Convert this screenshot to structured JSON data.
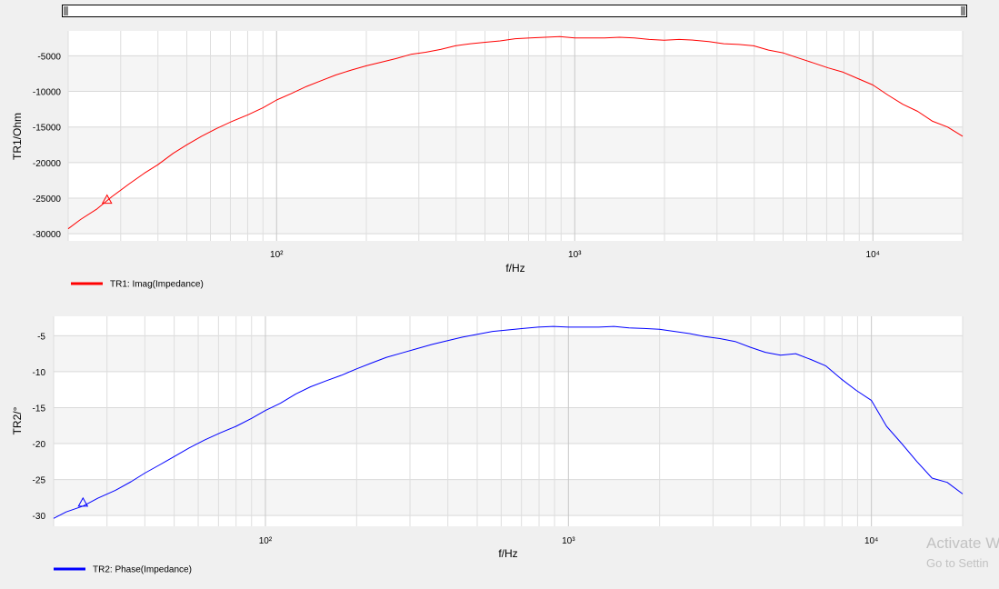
{
  "watermark": {
    "line1": "Activate W",
    "line2": "Go to Settin"
  },
  "charts": [
    {
      "type": "line",
      "xlabel": "f/Hz",
      "ylabel": "TR1/Ohm",
      "xscale": "log",
      "xlim": [
        20,
        20000
      ],
      "ylim": [
        -31000,
        -1500
      ],
      "yticks": [
        -5000,
        -10000,
        -15000,
        -20000,
        -25000,
        -30000
      ],
      "ytick_labels": [
        "-5000",
        "-10000",
        "-15000",
        "-20000",
        "-25000",
        "-30000"
      ],
      "xticks": [
        100,
        1000,
        10000
      ],
      "xtick_labels": [
        "10²",
        "10³",
        "10⁴"
      ],
      "grid": true,
      "legend_position": "bottom-left",
      "series": [
        {
          "name": "TR1: Imag(Impedance)",
          "color": "#ff0000",
          "x": [
            20,
            22,
            25,
            28,
            32,
            36,
            40,
            45,
            50,
            56,
            63,
            71,
            80,
            90,
            100,
            112,
            126,
            141,
            158,
            178,
            200,
            224,
            251,
            282,
            316,
            355,
            398,
            447,
            501,
            562,
            631,
            708,
            794,
            891,
            1000,
            1122,
            1259,
            1413,
            1585,
            1778,
            1995,
            2239,
            2512,
            2818,
            3162,
            3548,
            3981,
            4467,
            5012,
            5623,
            6310,
            7079,
            7943,
            8913,
            10000,
            11220,
            12589,
            14125,
            15849,
            17783,
            20000
          ],
          "y": [
            -29300,
            -28000,
            -26500,
            -24800,
            -23000,
            -21500,
            -20300,
            -18700,
            -17500,
            -16300,
            -15200,
            -14200,
            -13300,
            -12300,
            -11200,
            -10300,
            -9300,
            -8500,
            -7700,
            -7000,
            -6400,
            -5900,
            -5400,
            -4800,
            -4500,
            -4100,
            -3600,
            -3300,
            -3100,
            -2900,
            -2600,
            -2500,
            -2400,
            -2300,
            -2500,
            -2500,
            -2500,
            -2400,
            -2500,
            -2700,
            -2800,
            -2700,
            -2800,
            -3000,
            -3300,
            -3400,
            -3600,
            -4200,
            -4600,
            -5300,
            -6000,
            -6700,
            -7300,
            -8200,
            -9100,
            -10500,
            -11800,
            -12800,
            -14200,
            -15000,
            -16300
          ]
        }
      ],
      "marker": {
        "x": 27,
        "y": -25200,
        "shape": "triangle"
      }
    },
    {
      "type": "line",
      "xlabel": "f/Hz",
      "ylabel": "TR2/°",
      "xscale": "log",
      "xlim": [
        20,
        20000
      ],
      "ylim": [
        -31.5,
        -2.3
      ],
      "yticks": [
        -5,
        -10,
        -15,
        -20,
        -25,
        -30
      ],
      "ytick_labels": [
        "-5",
        "-10",
        "-15",
        "-20",
        "-25",
        "-30"
      ],
      "xticks": [
        100,
        1000,
        10000
      ],
      "xtick_labels": [
        "10²",
        "10³",
        "10⁴"
      ],
      "grid": true,
      "legend_position": "bottom-left",
      "series": [
        {
          "name": "TR2: Phase(Impedance)",
          "color": "#0000ff",
          "x": [
            20,
            22,
            25,
            28,
            32,
            36,
            40,
            45,
            50,
            56,
            63,
            71,
            80,
            90,
            100,
            112,
            126,
            141,
            158,
            178,
            200,
            224,
            251,
            282,
            316,
            355,
            398,
            447,
            501,
            562,
            631,
            708,
            794,
            891,
            1000,
            1122,
            1259,
            1413,
            1585,
            1778,
            1995,
            2239,
            2512,
            2818,
            3162,
            3548,
            3981,
            4467,
            5012,
            5623,
            6310,
            7079,
            7943,
            8913,
            10000,
            11220,
            12589,
            14125,
            15849,
            17783,
            20000
          ],
          "y": [
            -30.4,
            -29.5,
            -28.7,
            -27.6,
            -26.5,
            -25.3,
            -24.1,
            -22.9,
            -21.8,
            -20.6,
            -19.5,
            -18.5,
            -17.6,
            -16.5,
            -15.4,
            -14.4,
            -13.1,
            -12.1,
            -11.3,
            -10.5,
            -9.6,
            -8.8,
            -8.0,
            -7.4,
            -6.8,
            -6.2,
            -5.7,
            -5.2,
            -4.8,
            -4.4,
            -4.2,
            -4.0,
            -3.8,
            -3.7,
            -3.8,
            -3.8,
            -3.8,
            -3.7,
            -3.9,
            -4.0,
            -4.1,
            -4.4,
            -4.7,
            -5.1,
            -5.4,
            -5.8,
            -6.6,
            -7.3,
            -7.7,
            -7.5,
            -8.3,
            -9.2,
            -11.0,
            -12.6,
            -14.0,
            -17.6,
            -20.0,
            -22.5,
            -24.8,
            -25.4,
            -27.0
          ]
        }
      ],
      "marker": {
        "x": 25,
        "y": -28.2,
        "shape": "triangle"
      }
    }
  ]
}
